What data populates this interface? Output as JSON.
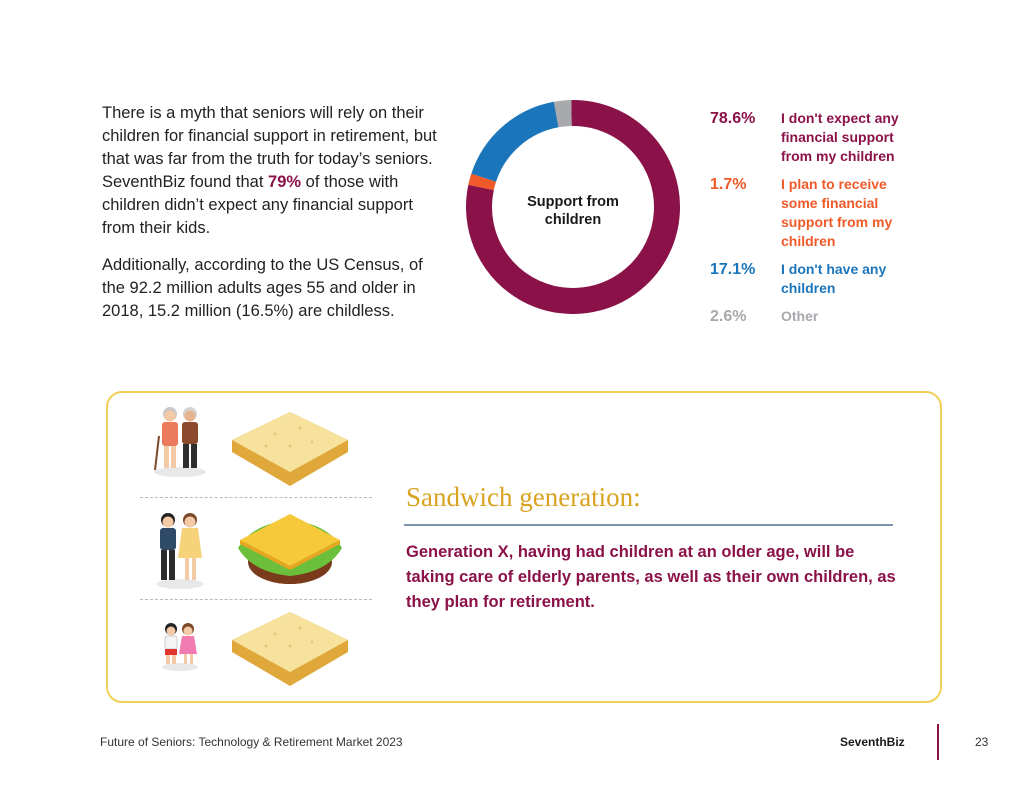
{
  "intro": {
    "para1_a": "There is a myth that seniors will rely on their children for financial support in retirement, but that was far from the truth for today’s seniors. SeventhBiz found that ",
    "para1_highlight": "79%",
    "para1_b": " of those with children didn’t expect any financial support from their kids.",
    "para2": "Additionally, according to the US Census, of the 92.2 million adults ages 55 and older in 2018, 15.2 million (16.5%) are childless."
  },
  "chart_data": {
    "type": "pie",
    "title": "Support from children",
    "slices": [
      {
        "label": "I don't expect any financial support from my children",
        "value": 78.6,
        "value_label": "78.6%",
        "color": "#8b1249"
      },
      {
        "label": "I plan to receive some financial support from my children",
        "value": 1.7,
        "value_label": "1.7%",
        "color": "#f05a28"
      },
      {
        "label": "I don't have any children",
        "value": 17.1,
        "value_label": "17.1%",
        "color": "#1b75bb"
      },
      {
        "label": "Other",
        "value": 2.6,
        "value_label": "2.6%",
        "color": "#a7a9ac"
      }
    ]
  },
  "sandwich": {
    "title": "Sandwich generation:",
    "body": "Generation X, having had children at an older age, will be taking care of elderly parents, as well as their own children, as they plan for retirement.",
    "colors": {
      "border": "#f0d05a",
      "title": "#d9a21f",
      "rule": "#7d92ab",
      "body": "#8b1249"
    }
  },
  "footer": {
    "report_title": "Future of Seniors: Technology & Retirement Market 2023",
    "brand": "SeventhBiz",
    "page_number": "23"
  }
}
